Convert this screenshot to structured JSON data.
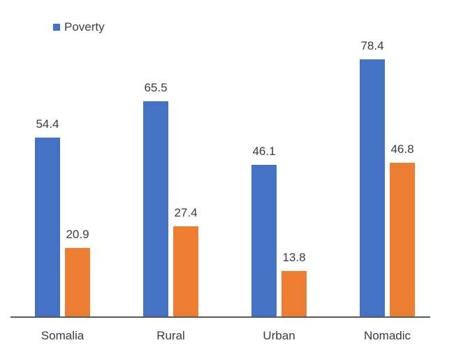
{
  "legend": {
    "label": "Poverty",
    "swatch_color": "#4472C4",
    "position": "top-left"
  },
  "colors": {
    "series_blue": "#4472C4",
    "series_orange": "#ED7D31",
    "axis_line": "#595959",
    "label_text": "#3a3a3a",
    "background": "#ffffff"
  },
  "chart_data": {
    "type": "bar",
    "title": "",
    "xlabel": "",
    "ylabel": "",
    "categories": [
      "Somalia",
      "Rural",
      "Urban",
      "Nomadic"
    ],
    "series": [
      {
        "name": "Poverty",
        "color": "#4472C4",
        "in_legend": true,
        "values": [
          54.4,
          65.5,
          46.1,
          78.4
        ]
      },
      {
        "name": "",
        "color": "#ED7D31",
        "in_legend": false,
        "values": [
          20.9,
          27.4,
          13.8,
          46.8
        ]
      }
    ],
    "data_labels": [
      "54.4",
      "65.5",
      "46.1",
      "78.4",
      "20.9",
      "27.4",
      "13.8",
      "46.8"
    ],
    "grid": false,
    "y_axis_visible": false,
    "legend_position": "top-left"
  }
}
